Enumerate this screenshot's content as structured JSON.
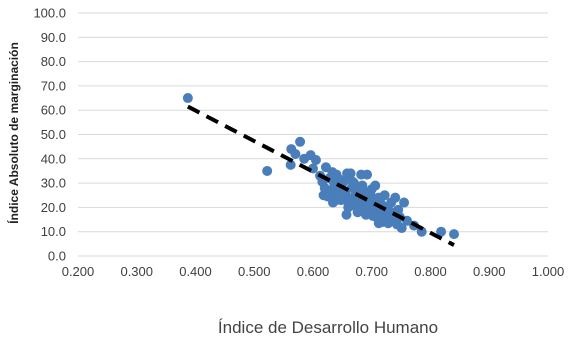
{
  "chart_data": {
    "type": "scatter",
    "title": "",
    "xlabel": "Índice de Desarrollo Humano",
    "ylabel": "Índice Absoluto de marginación",
    "xlim": [
      0.2,
      1.0
    ],
    "ylim": [
      0.0,
      100.0
    ],
    "x_ticks": [
      "0.200",
      "0.300",
      "0.400",
      "0.500",
      "0.600",
      "0.700",
      "0.800",
      "0.900",
      "1.000"
    ],
    "y_ticks": [
      "0.0",
      "10.0",
      "20.0",
      "30.0",
      "40.0",
      "50.0",
      "60.0",
      "70.0",
      "80.0",
      "90.0",
      "100.0"
    ],
    "grid": "horizontal",
    "legend": "none",
    "series": [
      {
        "marker": "circle",
        "points": [
          [
            0.387,
            65.0
          ],
          [
            0.522,
            35.0
          ],
          [
            0.562,
            37.5
          ],
          [
            0.563,
            44.0
          ],
          [
            0.57,
            42.0
          ],
          [
            0.578,
            47.0
          ],
          [
            0.585,
            40.0
          ],
          [
            0.596,
            41.5
          ],
          [
            0.6,
            36.0
          ],
          [
            0.605,
            39.5
          ],
          [
            0.612,
            33.0
          ],
          [
            0.616,
            30.5
          ],
          [
            0.618,
            25.0
          ],
          [
            0.62,
            28.0
          ],
          [
            0.622,
            36.5
          ],
          [
            0.625,
            24.5
          ],
          [
            0.628,
            32.0
          ],
          [
            0.63,
            27.0
          ],
          [
            0.633,
            34.5
          ],
          [
            0.636,
            30.0
          ],
          [
            0.638,
            26.0
          ],
          [
            0.64,
            33.5
          ],
          [
            0.643,
            28.5
          ],
          [
            0.645,
            31.5
          ],
          [
            0.648,
            23.0
          ],
          [
            0.65,
            27.5
          ],
          [
            0.652,
            30.5
          ],
          [
            0.655,
            25.5
          ],
          [
            0.657,
            17.0
          ],
          [
            0.659,
            22.5
          ],
          [
            0.662,
            32.0
          ],
          [
            0.664,
            34.0
          ],
          [
            0.666,
            28.0
          ],
          [
            0.668,
            24.0
          ],
          [
            0.67,
            30.0
          ],
          [
            0.672,
            20.5
          ],
          [
            0.674,
            27.0
          ],
          [
            0.676,
            18.0
          ],
          [
            0.678,
            25.5
          ],
          [
            0.68,
            22.0
          ],
          [
            0.682,
            33.5
          ],
          [
            0.684,
            29.0
          ],
          [
            0.686,
            19.5
          ],
          [
            0.688,
            26.5
          ],
          [
            0.69,
            23.5
          ],
          [
            0.692,
            33.5
          ],
          [
            0.694,
            21.5
          ],
          [
            0.696,
            18.5
          ],
          [
            0.698,
            25.0
          ],
          [
            0.7,
            20.0
          ],
          [
            0.702,
            16.5
          ],
          [
            0.704,
            23.0
          ],
          [
            0.706,
            29.0
          ],
          [
            0.708,
            19.5
          ],
          [
            0.71,
            15.5
          ],
          [
            0.712,
            24.0
          ],
          [
            0.714,
            18.0
          ],
          [
            0.716,
            21.5
          ],
          [
            0.718,
            14.0
          ],
          [
            0.72,
            17.0
          ],
          [
            0.722,
            25.0
          ],
          [
            0.724,
            20.0
          ],
          [
            0.726,
            16.0
          ],
          [
            0.728,
            13.5
          ],
          [
            0.73,
            18.5
          ],
          [
            0.733,
            22.0
          ],
          [
            0.735,
            15.0
          ],
          [
            0.738,
            17.5
          ],
          [
            0.74,
            24.0
          ],
          [
            0.743,
            13.0
          ],
          [
            0.745,
            19.0
          ],
          [
            0.748,
            16.0
          ],
          [
            0.751,
            11.5
          ],
          [
            0.755,
            22.0
          ],
          [
            0.76,
            14.5
          ],
          [
            0.772,
            12.5
          ],
          [
            0.785,
            10.0
          ],
          [
            0.818,
            10.0
          ],
          [
            0.84,
            9.0
          ],
          [
            0.64,
            23.0
          ],
          [
            0.66,
            20.0
          ],
          [
            0.668,
            30.5
          ],
          [
            0.69,
            17.0
          ],
          [
            0.7,
            27.5
          ],
          [
            0.712,
            13.5
          ],
          [
            0.634,
            22.0
          ],
          [
            0.676,
            22.5
          ],
          [
            0.658,
            34.0
          ],
          [
            0.726,
            20.0
          ],
          [
            0.654,
            25.0
          ]
        ]
      }
    ],
    "trendline": {
      "style": "dashed",
      "color": "#000000",
      "from": [
        0.387,
        61.5
      ],
      "to": [
        0.84,
        4.5
      ]
    },
    "colors": {
      "point": "#4a7ebb",
      "gridline": "#d9d9d9",
      "trendline": "#000000"
    }
  }
}
